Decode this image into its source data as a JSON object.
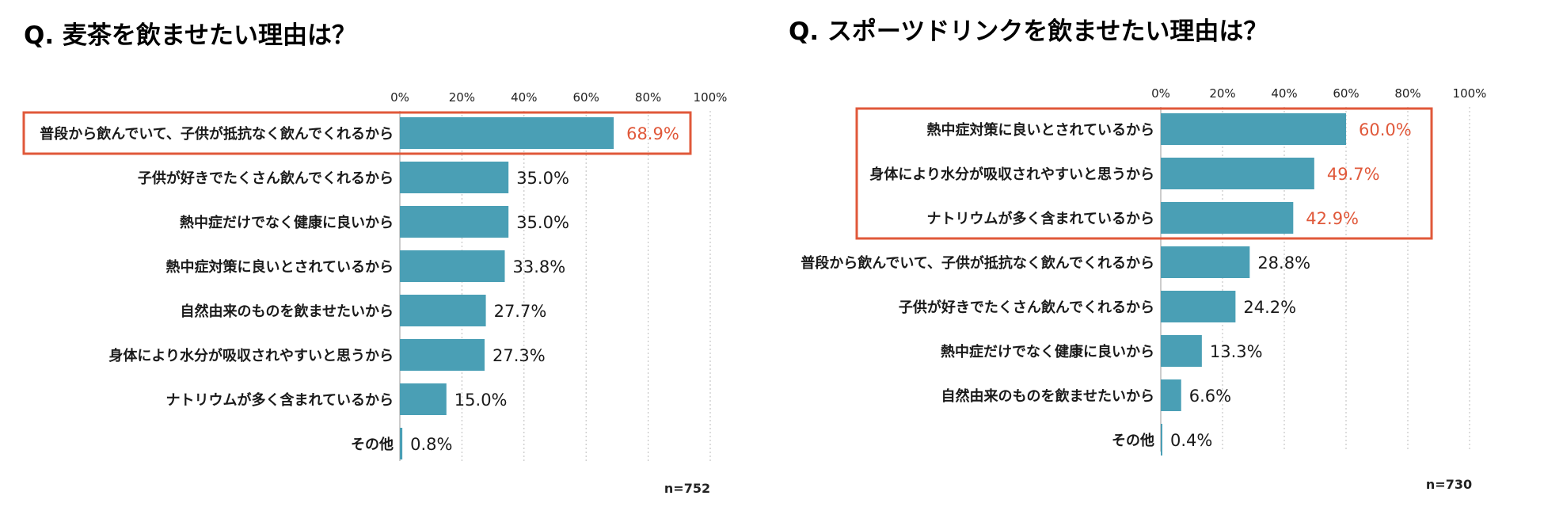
{
  "colors": {
    "bar": "#4a9fb5",
    "highlight": "#e0583a",
    "text": "#1a1a1a"
  },
  "chart_data": [
    {
      "type": "bar",
      "orientation": "horizontal",
      "title": "Q.  麦茶を飲ませたい理由は？",
      "categories": [
        "普段から飲んでいて、子供が抵抗なく飲んでくれるから",
        "子供が好きでたくさん飲んでくれるから",
        "熱中症だけでなく健康に良いから",
        "熱中症対策に良いとされているから",
        "自然由来のものを飲ませたいから",
        "身体により水分が吸収されやすいと思うから",
        "ナトリウムが多く含まれているから",
        "その他"
      ],
      "values": [
        68.9,
        35.0,
        35.0,
        33.8,
        27.7,
        27.3,
        15.0,
        0.8
      ],
      "value_labels": [
        "68.9%",
        "35.0%",
        "35.0%",
        "33.8%",
        "27.7%",
        "27.3%",
        "15.0%",
        "0.8%"
      ],
      "highlighted": [
        0
      ],
      "xlim": [
        0,
        100
      ],
      "ticks": [
        "0%",
        "20%",
        "40%",
        "60%",
        "80%",
        "100%"
      ],
      "grid": true,
      "note": "n=752"
    },
    {
      "type": "bar",
      "orientation": "horizontal",
      "title": "Q. スポーツドリンクを飲ませたい理由は？",
      "categories": [
        "熱中症対策に良いとされているから",
        "身体により水分が吸収されやすいと思うから",
        "ナトリウムが多く含まれているから",
        "普段から飲んでいて、子供が抵抗なく飲んでくれるから",
        "子供が好きでたくさん飲んでくれるから",
        "熱中症だけでなく健康に良いから",
        "自然由来のものを飲ませたいから",
        "その他"
      ],
      "values": [
        60.0,
        49.7,
        42.9,
        28.8,
        24.2,
        13.3,
        6.6,
        0.4
      ],
      "value_labels": [
        "60.0%",
        "49.7%",
        "42.9%",
        "28.8%",
        "24.2%",
        "13.3%",
        "6.6%",
        "0.4%"
      ],
      "highlighted": [
        0,
        1,
        2
      ],
      "xlim": [
        0,
        100
      ],
      "ticks": [
        "0%",
        "20%",
        "40%",
        "60%",
        "80%",
        "100%"
      ],
      "grid": true,
      "note": "n=730"
    }
  ]
}
